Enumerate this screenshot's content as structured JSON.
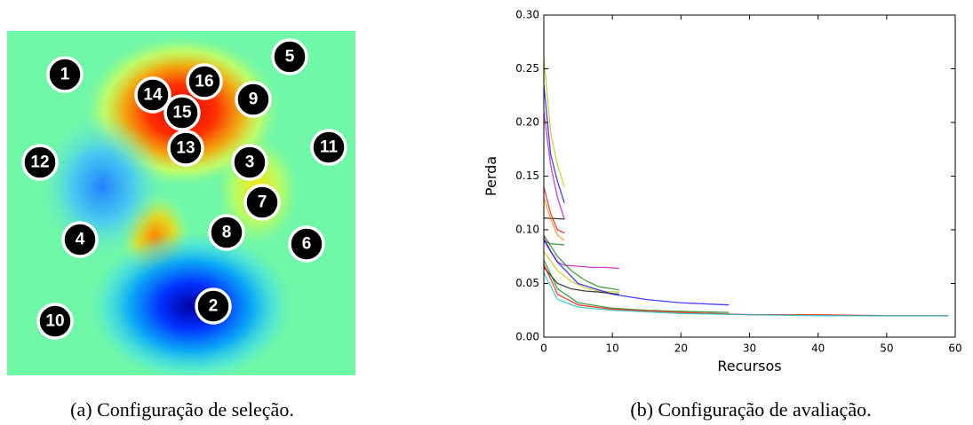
{
  "heatmap": {
    "nodes": [
      "1",
      "2",
      "3",
      "4",
      "5",
      "6",
      "7",
      "8",
      "9",
      "10",
      "11",
      "12",
      "13",
      "14",
      "15",
      "16"
    ]
  },
  "captions": [
    "(a) Configuração de seleção.",
    "(b) Configuração de avaliação."
  ],
  "chart_data": {
    "type": "line",
    "xlabel": "Recursos",
    "ylabel": "Perda",
    "xlim": [
      0,
      60
    ],
    "ylim": [
      0,
      0.3
    ],
    "xticks": [
      0,
      10,
      20,
      30,
      40,
      50,
      60
    ],
    "yticks": [
      {
        "value": 0,
        "label": "0.00"
      },
      {
        "value": 0.05,
        "label": "0.05"
      },
      {
        "value": 0.1,
        "label": "0.10"
      },
      {
        "value": 0.15,
        "label": "0.15"
      },
      {
        "value": 0.2,
        "label": "0.20"
      },
      {
        "value": 0.25,
        "label": "0.25"
      },
      {
        "value": 0.3,
        "label": "0.30"
      }
    ],
    "series": [
      {
        "color": "#bfbf00",
        "x": [
          0,
          1,
          2,
          3
        ],
        "values": [
          0.26,
          0.19,
          0.16,
          0.14
        ]
      },
      {
        "color": "#0000ff",
        "x": [
          0,
          1,
          2,
          3
        ],
        "values": [
          0.235,
          0.17,
          0.145,
          0.125
        ]
      },
      {
        "color": "#bf00bf",
        "x": [
          0,
          1,
          2,
          3
        ],
        "values": [
          0.21,
          0.16,
          0.13,
          0.11
        ]
      },
      {
        "color": "#000000",
        "x": [
          0,
          3
        ],
        "values": [
          0.111,
          0.11
        ]
      },
      {
        "color": "#ff0000",
        "x": [
          0,
          1,
          2,
          3
        ],
        "values": [
          0.14,
          0.115,
          0.1,
          0.097
        ]
      },
      {
        "color": "#ff8000",
        "x": [
          0,
          1,
          2,
          3
        ],
        "values": [
          0.13,
          0.11,
          0.095,
          0.09
        ]
      },
      {
        "color": "#008000",
        "x": [
          0,
          1,
          3
        ],
        "values": [
          0.09,
          0.087,
          0.086
        ]
      },
      {
        "color": "#bf00bf",
        "x": [
          0,
          1,
          2,
          3,
          5,
          7,
          9,
          11
        ],
        "values": [
          0.093,
          0.08,
          0.07,
          0.067,
          0.066,
          0.065,
          0.065,
          0.064
        ]
      },
      {
        "color": "#008000",
        "x": [
          0,
          2,
          4,
          6,
          8,
          11
        ],
        "values": [
          0.095,
          0.075,
          0.062,
          0.053,
          0.047,
          0.044
        ]
      },
      {
        "color": "#bfbf00",
        "x": [
          0,
          2,
          4,
          6,
          8,
          11
        ],
        "values": [
          0.08,
          0.062,
          0.052,
          0.046,
          0.043,
          0.042
        ]
      },
      {
        "color": "#000000",
        "x": [
          0,
          2,
          4,
          6,
          8,
          11
        ],
        "values": [
          0.065,
          0.05,
          0.045,
          0.043,
          0.042,
          0.04
        ]
      },
      {
        "color": "#0000ff",
        "x": [
          0,
          2,
          5,
          10,
          15,
          20,
          27
        ],
        "values": [
          0.09,
          0.07,
          0.05,
          0.04,
          0.035,
          0.032,
          0.03
        ]
      },
      {
        "color": "#008000",
        "x": [
          0,
          2,
          5,
          10,
          15,
          20,
          27
        ],
        "values": [
          0.072,
          0.045,
          0.032,
          0.027,
          0.025,
          0.024,
          0.023
        ]
      },
      {
        "color": "#ff0000",
        "x": [
          0,
          2,
          5,
          10,
          20,
          30,
          40,
          50,
          59
        ],
        "values": [
          0.068,
          0.04,
          0.03,
          0.026,
          0.023,
          0.021,
          0.021,
          0.02,
          0.02
        ]
      },
      {
        "color": "#00bfbf",
        "x": [
          0,
          2,
          5,
          10,
          20,
          30,
          40,
          50,
          59
        ],
        "values": [
          0.06,
          0.035,
          0.028,
          0.025,
          0.022,
          0.021,
          0.02,
          0.02,
          0.02
        ]
      }
    ]
  }
}
